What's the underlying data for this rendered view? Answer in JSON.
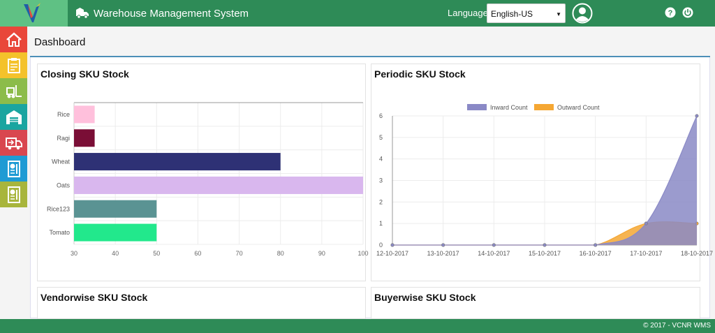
{
  "header": {
    "app_title": "Warehouse Management System",
    "language_label": "Language",
    "language_value": "English-US"
  },
  "sidebar": {
    "items": [
      {
        "name": "home",
        "color": "#e9473a"
      },
      {
        "name": "clipboard",
        "color": "#f4c22b"
      },
      {
        "name": "forklift",
        "color": "#8cbc4a"
      },
      {
        "name": "warehouse",
        "color": "#1aa5a0"
      },
      {
        "name": "dispatch-truck",
        "color": "#d9474f"
      },
      {
        "name": "report",
        "color": "#1f9bd4"
      },
      {
        "name": "report-alt",
        "color": "#a8b53c"
      }
    ]
  },
  "page": {
    "title": "Dashboard"
  },
  "panels": {
    "closing": {
      "title": "Closing SKU Stock"
    },
    "periodic": {
      "title": "Periodic SKU Stock"
    },
    "vendorwise": {
      "title": "Vendorwise SKU Stock"
    },
    "buyerwise": {
      "title": "Buyerwise SKU Stock"
    }
  },
  "footer": {
    "text": "© 2017 - VCNR WMS"
  },
  "chart_data": [
    {
      "type": "bar",
      "orientation": "horizontal",
      "title": "Closing SKU Stock",
      "categories": [
        "Rice",
        "Ragi",
        "Wheat",
        "Oats",
        "Rice123",
        "Tomato"
      ],
      "values": [
        35,
        35,
        80,
        100,
        50,
        50
      ],
      "colors": [
        "#ffc0dc",
        "#7a0e36",
        "#2e3175",
        "#d9b7ee",
        "#5a9393",
        "#22e88c"
      ],
      "xlim": [
        30,
        100
      ],
      "xticks": [
        30,
        40,
        50,
        60,
        70,
        80,
        90,
        100
      ],
      "grid": true
    },
    {
      "type": "area",
      "title": "Periodic SKU Stock",
      "x": [
        "12-10-2017",
        "13-10-2017",
        "14-10-2017",
        "15-10-2017",
        "16-10-2017",
        "17-10-2017",
        "18-10-2017"
      ],
      "series": [
        {
          "name": "Inward Count",
          "values": [
            0,
            0,
            0,
            0,
            0,
            1,
            6
          ],
          "color": "#8a89c6"
        },
        {
          "name": "Outward Count",
          "values": [
            0,
            0,
            0,
            0,
            0,
            1,
            1
          ],
          "color": "#f5a733"
        }
      ],
      "ylim": [
        0,
        6
      ],
      "yticks": [
        0,
        1,
        2,
        3,
        4,
        5,
        6
      ],
      "legend": "top",
      "grid": true
    }
  ]
}
